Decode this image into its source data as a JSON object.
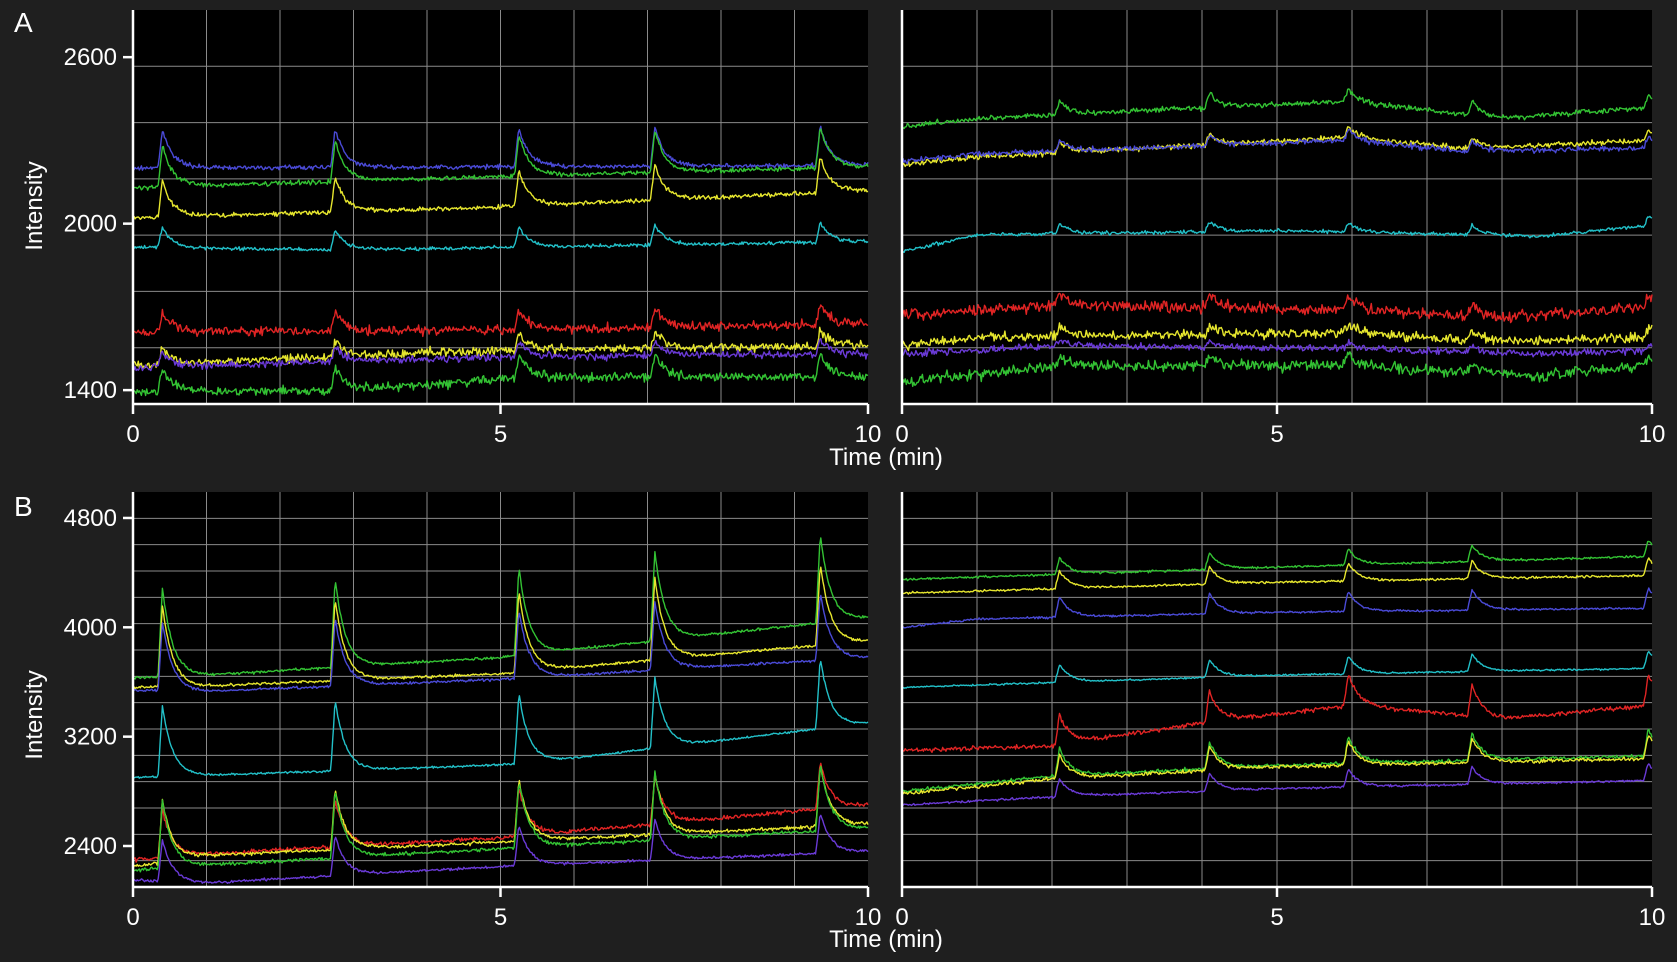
{
  "figure": {
    "background": "#1f1f1f",
    "plot_background": "#000000",
    "grid_color": "#8a8a8a",
    "axis_color": "#ffffff",
    "text_color": "#ffffff"
  },
  "chart_data": [
    {
      "panel_letter": "A",
      "type": "line",
      "ylabel": "Intensity",
      "xlabel": "Time (min)",
      "xlim": [
        0,
        10
      ],
      "ylim": [
        1350,
        2770
      ],
      "x_ticks": [
        0,
        5,
        10
      ],
      "y_ticks": [
        1400,
        2000,
        2600
      ],
      "grid": true,
      "peak_times": [
        0.4,
        2.75,
        5.25,
        7.1,
        9.35
      ],
      "series": [
        {
          "color": "#4a4ad6",
          "baseline": [
            [
              0,
              2200
            ],
            [
              10,
              2210
            ]
          ],
          "peak": 140,
          "noise": 5
        },
        {
          "color": "#33c233",
          "baseline": [
            [
              0,
              2130
            ],
            [
              5,
              2170
            ],
            [
              10,
              2205
            ]
          ],
          "peak": 150,
          "noise": 5
        },
        {
          "color": "#e6e62e",
          "baseline": [
            [
              0,
              2020
            ],
            [
              5,
              2060
            ],
            [
              10,
              2120
            ]
          ],
          "peak": 130,
          "noise": 5
        },
        {
          "color": "#22c0c8",
          "baseline": [
            [
              0,
              1915
            ],
            [
              2.8,
              1905
            ],
            [
              10,
              1935
            ]
          ],
          "peak": 75,
          "noise": 4
        },
        {
          "color": "#e02424",
          "baseline": [
            [
              0,
              1610
            ],
            [
              5,
              1615
            ],
            [
              10,
              1640
            ]
          ],
          "peak": 75,
          "noise": 10
        },
        {
          "color": "#e6e62e",
          "baseline": [
            [
              0,
              1490
            ],
            [
              5,
              1545
            ],
            [
              10,
              1560
            ]
          ],
          "peak": 60,
          "noise": 10
        },
        {
          "color": "#6a3ad6",
          "baseline": [
            [
              0,
              1480
            ],
            [
              5,
              1520
            ],
            [
              10,
              1530
            ]
          ],
          "peak": 55,
          "noise": 8
        },
        {
          "color": "#33c233",
          "baseline": [
            [
              0,
              1395
            ],
            [
              3,
              1400
            ],
            [
              5.3,
              1445
            ],
            [
              10,
              1450
            ]
          ],
          "peak": 85,
          "noise": 10
        }
      ]
    },
    {
      "panel_letter": "",
      "type": "line",
      "ylabel": "",
      "xlabel": "",
      "xlim": [
        0,
        10
      ],
      "ylim": [
        1350,
        2770
      ],
      "x_ticks": [
        0,
        5,
        10
      ],
      "y_ticks": [],
      "grid": true,
      "peak_times": [
        2.1,
        4.1,
        5.95,
        7.6,
        9.95
      ],
      "series": [
        {
          "color": "#33c233",
          "baseline": [
            [
              0,
              2350
            ],
            [
              1,
              2380
            ],
            [
              5.9,
              2440
            ],
            [
              7,
              2410
            ],
            [
              8,
              2380
            ],
            [
              10,
              2420
            ]
          ],
          "peak": 50,
          "noise": 6
        },
        {
          "color": "#e6e62e",
          "baseline": [
            [
              0,
              2215
            ],
            [
              1,
              2240
            ],
            [
              5.9,
              2310
            ],
            [
              7.6,
              2270
            ],
            [
              10,
              2300
            ]
          ],
          "peak": 40,
          "noise": 6
        },
        {
          "color": "#4a4ad6",
          "baseline": [
            [
              0,
              2225
            ],
            [
              1,
              2250
            ],
            [
              5.9,
              2300
            ],
            [
              7.6,
              2260
            ],
            [
              10,
              2275
            ]
          ],
          "peak": 40,
          "noise": 6
        },
        {
          "color": "#22c0c8",
          "baseline": [
            [
              0,
              1900
            ],
            [
              1,
              1960
            ],
            [
              5,
              1975
            ],
            [
              8.5,
              1955
            ],
            [
              10,
              1995
            ]
          ],
          "peak": 35,
          "noise": 4
        },
        {
          "color": "#e02424",
          "baseline": [
            [
              0,
              1670
            ],
            [
              2,
              1705
            ],
            [
              6,
              1690
            ],
            [
              8,
              1660
            ],
            [
              10,
              1700
            ]
          ],
          "peak": 45,
          "noise": 12
        },
        {
          "color": "#e6e62e",
          "baseline": [
            [
              0,
              1560
            ],
            [
              1,
              1590
            ],
            [
              6,
              1605
            ],
            [
              8,
              1575
            ],
            [
              10,
              1590
            ]
          ],
          "peak": 35,
          "noise": 10
        },
        {
          "color": "#6a3ad6",
          "baseline": [
            [
              0,
              1530
            ],
            [
              2,
              1560
            ],
            [
              6,
              1550
            ],
            [
              8.5,
              1530
            ],
            [
              10,
              1545
            ]
          ],
          "peak": 20,
          "noise": 8
        },
        {
          "color": "#33c233",
          "baseline": [
            [
              0,
              1430
            ],
            [
              2,
              1485
            ],
            [
              6,
              1490
            ],
            [
              8.5,
              1450
            ],
            [
              10,
              1490
            ]
          ],
          "peak": 35,
          "noise": 12
        }
      ]
    },
    {
      "panel_letter": "B",
      "type": "line",
      "ylabel": "Intensity",
      "xlabel": "Time (min)",
      "xlim": [
        0,
        10
      ],
      "ylim": [
        2100,
        4990
      ],
      "x_ticks": [
        0,
        5,
        10
      ],
      "y_ticks": [
        2400,
        3200,
        4000,
        4800
      ],
      "grid": true,
      "peak_times": [
        0.4,
        2.75,
        5.25,
        7.1,
        9.35
      ],
      "series": [
        {
          "color": "#33c233",
          "baseline": [
            [
              0,
              3630
            ],
            [
              1,
              3650
            ],
            [
              5,
              3780
            ],
            [
              10,
              4070
            ]
          ],
          "peak": 650,
          "noise": 6
        },
        {
          "color": "#e6e62e",
          "baseline": [
            [
              0,
              3560
            ],
            [
              1,
              3570
            ],
            [
              5,
              3660
            ],
            [
              10,
              3900
            ]
          ],
          "peak": 600,
          "noise": 6
        },
        {
          "color": "#4a4ad6",
          "baseline": [
            [
              0,
              3540
            ],
            [
              1,
              3530
            ],
            [
              5,
              3620
            ],
            [
              10,
              3780
            ]
          ],
          "peak": 500,
          "noise": 6
        },
        {
          "color": "#22c0c8",
          "baseline": [
            [
              0,
              2900
            ],
            [
              2.8,
              2950
            ],
            [
              5.3,
              3000
            ],
            [
              10,
              3300
            ]
          ],
          "peak": 520,
          "noise": 5
        },
        {
          "color": "#e02424",
          "baseline": [
            [
              0,
              2300
            ],
            [
              1,
              2340
            ],
            [
              5,
              2460
            ],
            [
              10,
              2700
            ]
          ],
          "peak": 350,
          "noise": 10
        },
        {
          "color": "#e6e62e",
          "baseline": [
            [
              0,
              2250
            ],
            [
              1,
              2330
            ],
            [
              5,
              2430
            ],
            [
              10,
              2560
            ]
          ],
          "peak": 450,
          "noise": 8
        },
        {
          "color": "#33c233",
          "baseline": [
            [
              0,
              2220
            ],
            [
              1,
              2260
            ],
            [
              5,
              2380
            ],
            [
              10,
              2530
            ]
          ],
          "peak": 500,
          "noise": 8
        },
        {
          "color": "#6a3ad6",
          "baseline": [
            [
              0,
              2150
            ],
            [
              1,
              2130
            ],
            [
              5,
              2250
            ],
            [
              10,
              2360
            ]
          ],
          "peak": 300,
          "noise": 6
        }
      ]
    },
    {
      "panel_letter": "",
      "type": "line",
      "ylabel": "",
      "xlabel": "",
      "xlim": [
        0,
        10
      ],
      "ylim": [
        2100,
        4990
      ],
      "x_ticks": [
        0,
        5,
        10
      ],
      "y_ticks": [],
      "grid": true,
      "peak_times": [
        2.1,
        4.1,
        5.95,
        7.6,
        9.95
      ],
      "series": [
        {
          "color": "#33c233",
          "baseline": [
            [
              0,
              4350
            ],
            [
              5,
              4440
            ],
            [
              10,
              4520
            ]
          ],
          "peak": 120,
          "noise": 5
        },
        {
          "color": "#e6e62e",
          "baseline": [
            [
              0,
              4250
            ],
            [
              5,
              4330
            ],
            [
              10,
              4380
            ]
          ],
          "peak": 130,
          "noise": 5
        },
        {
          "color": "#4a4ad6",
          "baseline": [
            [
              0,
              4000
            ],
            [
              1,
              4060
            ],
            [
              5,
              4110
            ],
            [
              10,
              4140
            ]
          ],
          "peak": 150,
          "noise": 5
        },
        {
          "color": "#22c0c8",
          "baseline": [
            [
              0,
              3560
            ],
            [
              5,
              3650
            ],
            [
              10,
              3700
            ]
          ],
          "peak": 130,
          "noise": 4
        },
        {
          "color": "#e02424",
          "baseline": [
            [
              0,
              3100
            ],
            [
              2,
              3130
            ],
            [
              4,
              3300
            ],
            [
              6,
              3430
            ],
            [
              8,
              3330
            ],
            [
              10,
              3430
            ]
          ],
          "peak": 230,
          "noise": 10
        },
        {
          "color": "#33c233",
          "baseline": [
            [
              0,
              2800
            ],
            [
              2,
              2910
            ],
            [
              5,
              2990
            ],
            [
              10,
              3060
            ]
          ],
          "peak": 200,
          "noise": 8
        },
        {
          "color": "#e6e62e",
          "baseline": [
            [
              0,
              2780
            ],
            [
              2,
              2890
            ],
            [
              5,
              2980
            ],
            [
              10,
              3040
            ]
          ],
          "peak": 180,
          "noise": 8
        },
        {
          "color": "#6a3ad6",
          "baseline": [
            [
              0,
              2700
            ],
            [
              2,
              2760
            ],
            [
              5,
              2820
            ],
            [
              10,
              2880
            ]
          ],
          "peak": 130,
          "noise": 5
        }
      ]
    }
  ]
}
